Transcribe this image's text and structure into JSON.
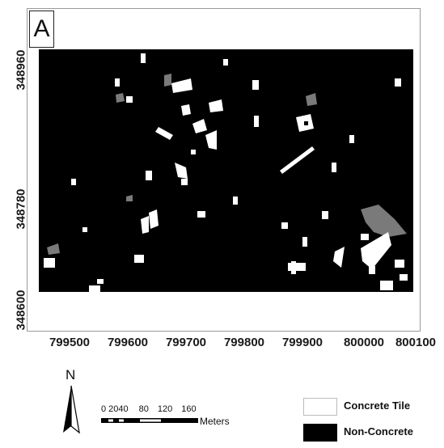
{
  "panel": {
    "label": "A"
  },
  "y_ticks": [
    "348960",
    "348780",
    "348600"
  ],
  "x_ticks": [
    "799500",
    "799600",
    "799700",
    "799800",
    "799900",
    "800000",
    "800100"
  ],
  "north_arrow": {
    "label": "N"
  },
  "scale_bar": {
    "labels": [
      "0 2040",
      "80",
      "120",
      "160"
    ],
    "units": "Meters"
  },
  "legend": [
    {
      "label": "Concrete Tile",
      "color": "#ffffff"
    },
    {
      "label": "Non-Concrete",
      "color": "#000000"
    }
  ],
  "colors": {
    "background": "#000000",
    "concrete": "#ffffff",
    "mixed": "#7a7a7a"
  }
}
